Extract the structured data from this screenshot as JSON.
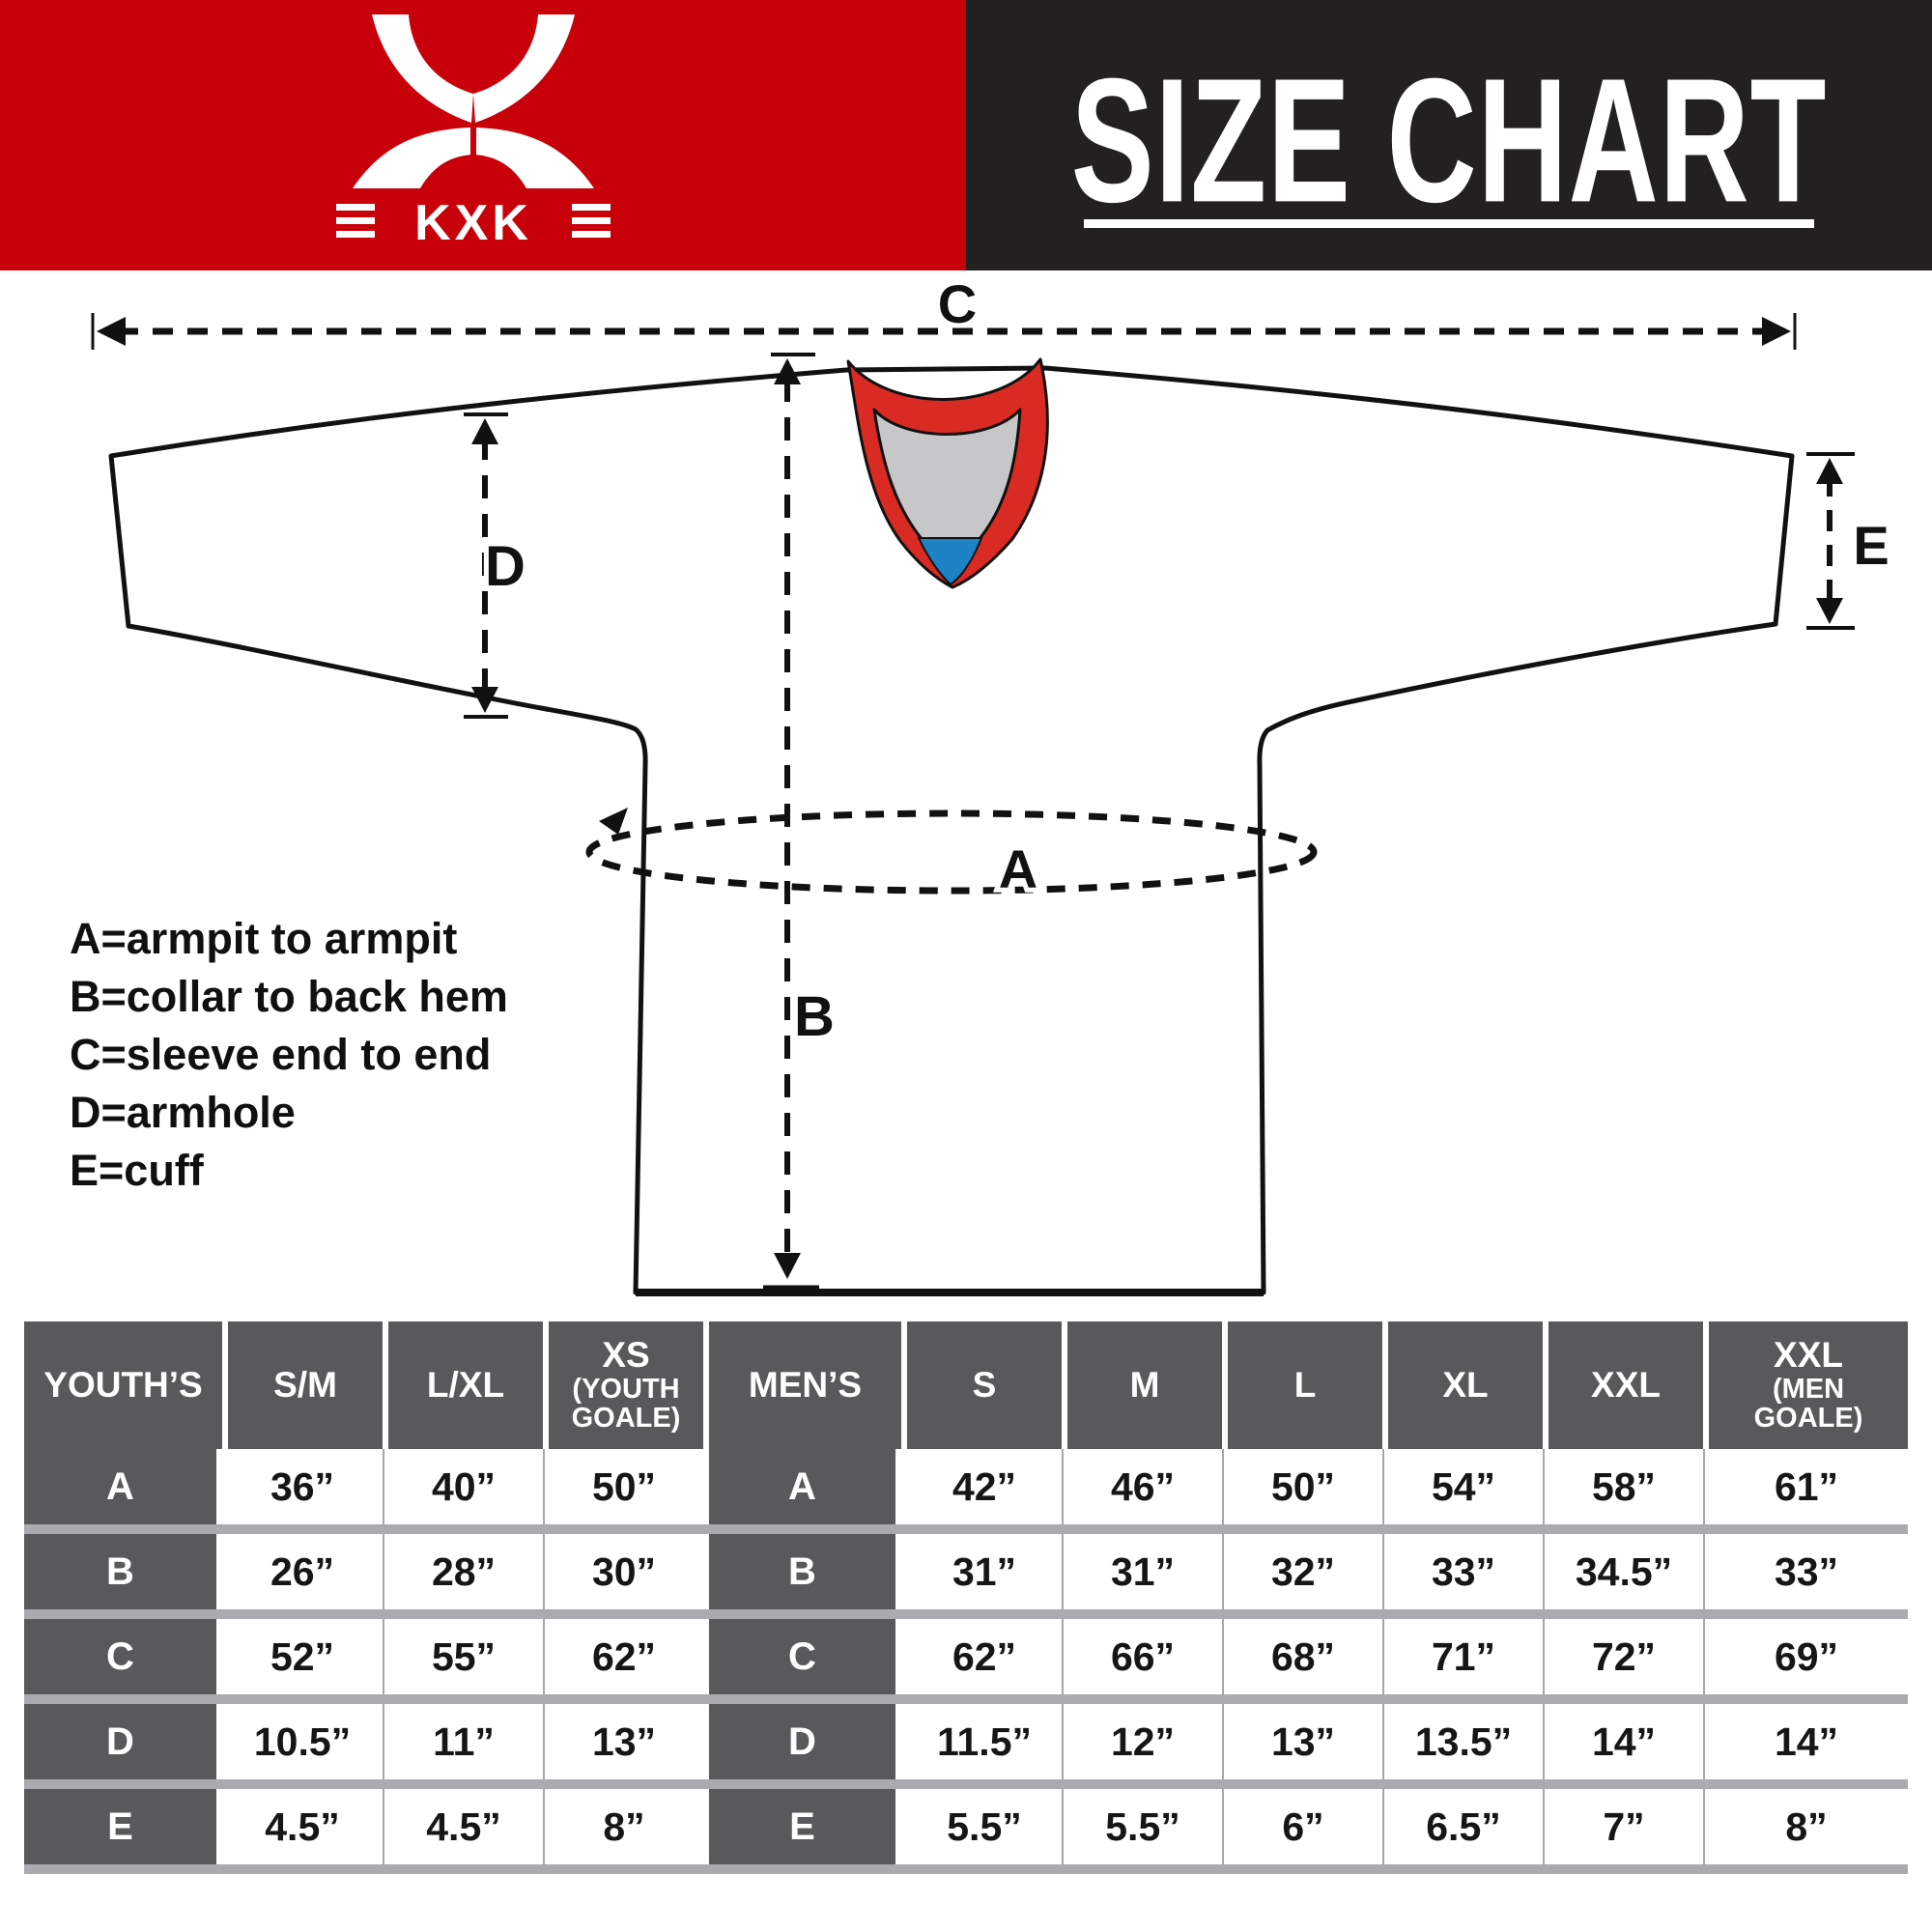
{
  "brand": {
    "logo_text": "KXK"
  },
  "header": {
    "title": "SIZE CHART"
  },
  "colors": {
    "brand_red": "#c80009",
    "header_black": "#232021",
    "collar_red": "#da2a24",
    "collar_gray": "#c7c7c9",
    "collar_blue": "#1d83c4",
    "table_header_gray": "#58595b",
    "separator_gray": "#a9abae",
    "cell_line_gray": "#a5a7aa"
  },
  "diagram": {
    "measure_labels": {
      "a": "A",
      "b": "B",
      "c": "C",
      "d": "D",
      "e": "E"
    },
    "legend": [
      "A=armpit to armpit",
      "B=collar to back hem",
      "C=sleeve end to end",
      "D=armhole",
      "E=cuff"
    ]
  },
  "table": {
    "row_labels": [
      "A",
      "B",
      "C",
      "D",
      "E"
    ],
    "youth": {
      "group_label": "YOUTH’S",
      "columns": [
        {
          "label": "S/M",
          "values": [
            "36”",
            "26”",
            "52”",
            "10.5”",
            "4.5”"
          ]
        },
        {
          "label": "L/XL",
          "values": [
            "40”",
            "28”",
            "55”",
            "11”",
            "4.5”"
          ]
        },
        {
          "label": "XS",
          "sub_lines": [
            "(YOUTH",
            "GOALE)"
          ],
          "values": [
            "50”",
            "30”",
            "62”",
            "13”",
            "8”"
          ]
        }
      ]
    },
    "men": {
      "group_label": "MEN’S",
      "columns": [
        {
          "label": "S",
          "values": [
            "42”",
            "31”",
            "62”",
            "11.5”",
            "5.5”"
          ]
        },
        {
          "label": "M",
          "values": [
            "46”",
            "31”",
            "66”",
            "12”",
            "5.5”"
          ]
        },
        {
          "label": "L",
          "values": [
            "50”",
            "32”",
            "68”",
            "13”",
            "6”"
          ]
        },
        {
          "label": "XL",
          "values": [
            "54”",
            "33”",
            "71”",
            "13.5”",
            "6.5”"
          ]
        },
        {
          "label": "XXL",
          "values": [
            "58”",
            "34.5”",
            "72”",
            "14”",
            "7”"
          ]
        },
        {
          "label": "XXL",
          "sub_lines": [
            "(MEN",
            "GOALE)"
          ],
          "values": [
            "61”",
            "33”",
            "69”",
            "14”",
            "8”"
          ]
        }
      ]
    }
  }
}
